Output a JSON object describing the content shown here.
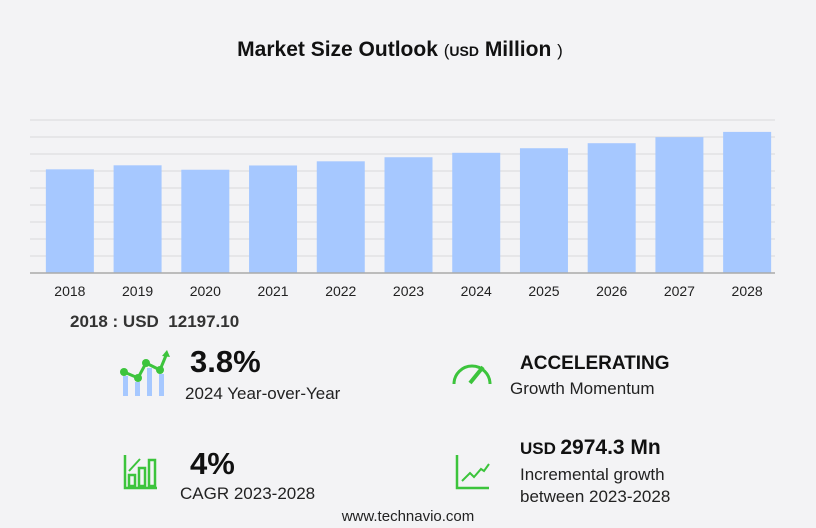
{
  "title": {
    "main": "Market Size Outlook",
    "open": "(",
    "unit": "USD",
    "unit_word": "Million",
    "close": ")"
  },
  "chart_data": {
    "type": "bar",
    "title": "Market Size Outlook (USD Million)",
    "categories": [
      "2018",
      "2019",
      "2020",
      "2021",
      "2022",
      "2023",
      "2024",
      "2025",
      "2026",
      "2027",
      "2028"
    ],
    "values": [
      12197.1,
      12670,
      12150,
      12650,
      13140,
      13620,
      14140,
      14680,
      15270,
      15980,
      16600
    ],
    "ylim": [
      0,
      18000
    ],
    "grid": true,
    "bar_color": "#a6c8ff"
  },
  "base_year": {
    "label": "2018 : USD",
    "value": "12197.10"
  },
  "stats": {
    "yoy": {
      "value": "3.8%",
      "label": "2024 Year-over-Year"
    },
    "momentum": {
      "value": "ACCELERATING",
      "label": "Growth Momentum"
    },
    "cagr": {
      "value": "4%",
      "label": "CAGR 2023-2028"
    },
    "incremental": {
      "prefix": "USD",
      "value": "2974.3 Mn",
      "label1": "Incremental growth",
      "label2": "between 2023-2028"
    }
  },
  "colors": {
    "accent_green": "#3cc43c",
    "bar": "#a6c8ff"
  },
  "footer": "www.technavio.com"
}
